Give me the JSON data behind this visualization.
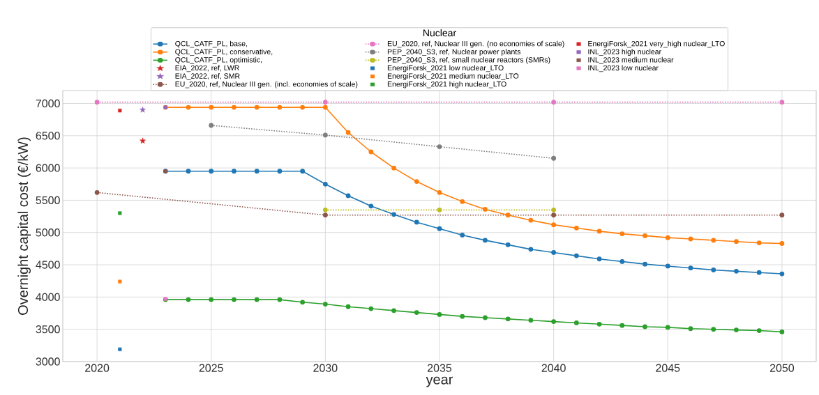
{
  "chart_data": {
    "type": "line",
    "xlabel": "year",
    "ylabel": "Overnight capital cost (€/kW)",
    "legend_title": "Nuclear",
    "legend": "top",
    "grid": true,
    "xlim": [
      2018.5,
      2051.5
    ],
    "ylim": [
      3000,
      7200
    ],
    "xticks": [
      2020,
      2025,
      2030,
      2035,
      2040,
      2045,
      2050
    ],
    "yticks": [
      3000,
      3500,
      4000,
      4500,
      5000,
      5500,
      6000,
      6500,
      7000
    ],
    "series": [
      {
        "name": "QCL_CATF_PL, base,",
        "type": "line",
        "marker": "circle",
        "line_style": "solid",
        "color": "#1f77b4",
        "x": [
          2023,
          2024,
          2025,
          2026,
          2027,
          2028,
          2029,
          2030,
          2031,
          2032,
          2033,
          2034,
          2035,
          2036,
          2037,
          2038,
          2039,
          2040,
          2041,
          2042,
          2043,
          2044,
          2045,
          2046,
          2047,
          2048,
          2049,
          2050
        ],
        "values": [
          5950,
          5950,
          5950,
          5950,
          5950,
          5950,
          5950,
          5750,
          5570,
          5410,
          5280,
          5160,
          5060,
          4960,
          4880,
          4810,
          4740,
          4690,
          4640,
          4590,
          4550,
          4510,
          4480,
          4450,
          4420,
          4400,
          4380,
          4360
        ]
      },
      {
        "name": "QCL_CATF_PL, conservative,",
        "type": "line",
        "marker": "circle",
        "line_style": "solid",
        "color": "#ff7f0e",
        "x": [
          2023,
          2024,
          2025,
          2026,
          2027,
          2028,
          2029,
          2030,
          2031,
          2032,
          2033,
          2034,
          2035,
          2036,
          2037,
          2038,
          2039,
          2040,
          2041,
          2042,
          2043,
          2044,
          2045,
          2046,
          2047,
          2048,
          2049,
          2050
        ],
        "values": [
          6940,
          6940,
          6940,
          6940,
          6940,
          6940,
          6940,
          6940,
          6550,
          6250,
          6000,
          5790,
          5620,
          5480,
          5360,
          5270,
          5190,
          5120,
          5070,
          5020,
          4980,
          4950,
          4920,
          4900,
          4880,
          4860,
          4840,
          4830
        ]
      },
      {
        "name": "QCL_CATF_PL, optimistic,",
        "type": "line",
        "marker": "circle",
        "line_style": "solid",
        "color": "#2ca02c",
        "x": [
          2023,
          2024,
          2025,
          2026,
          2027,
          2028,
          2029,
          2030,
          2031,
          2032,
          2033,
          2034,
          2035,
          2036,
          2037,
          2038,
          2039,
          2040,
          2041,
          2042,
          2043,
          2044,
          2045,
          2046,
          2047,
          2048,
          2049,
          2050
        ],
        "values": [
          3960,
          3960,
          3960,
          3960,
          3960,
          3960,
          3920,
          3890,
          3850,
          3820,
          3790,
          3760,
          3730,
          3700,
          3680,
          3660,
          3640,
          3620,
          3600,
          3580,
          3560,
          3540,
          3530,
          3510,
          3500,
          3490,
          3480,
          3460
        ]
      },
      {
        "name": "EIA_2022, ref, LWR",
        "type": "scatter",
        "marker": "star",
        "color": "#d62728",
        "x": [
          2022
        ],
        "values": [
          6420
        ]
      },
      {
        "name": "EIA_2022, ref, SMR",
        "type": "scatter",
        "marker": "star",
        "color": "#9467bd",
        "x": [
          2022
        ],
        "values": [
          6900
        ]
      },
      {
        "name": "EU_2020, ref, Nuclear III gen. (incl. economies of scale)",
        "type": "line",
        "marker": "circle",
        "line_style": "dotted",
        "color": "#8c564b",
        "x": [
          2020,
          2030,
          2040,
          2050
        ],
        "values": [
          5620,
          5270,
          5270,
          5270
        ]
      },
      {
        "name": "EU_2020, ref, Nuclear III gen. (no economies of scale)",
        "type": "line",
        "marker": "circle",
        "line_style": "dotted",
        "color": "#e377c2",
        "x": [
          2020,
          2030,
          2040,
          2050
        ],
        "values": [
          7020,
          7020,
          7020,
          7020
        ]
      },
      {
        "name": "PEP_2040_S3, ref, Nuclear power plants",
        "type": "line",
        "marker": "circle",
        "line_style": "dotted",
        "color": "#7f7f7f",
        "x": [
          2025,
          2030,
          2035,
          2040
        ],
        "values": [
          6660,
          6510,
          6330,
          6150
        ]
      },
      {
        "name": "PEP_2040_S3, ref, small nuclear reactors (SMRs)",
        "type": "line",
        "marker": "circle",
        "line_style": "dotted",
        "color": "#bcbd22",
        "x": [
          2030,
          2035,
          2040
        ],
        "values": [
          5350,
          5350,
          5350
        ]
      },
      {
        "name": "EnergiForsk_2021 low nuclear_LTO",
        "type": "scatter",
        "marker": "square",
        "color": "#1f77b4",
        "x": [
          2021
        ],
        "values": [
          3190
        ]
      },
      {
        "name": "EnergiForsk_2021 medium nuclear_LTO",
        "type": "scatter",
        "marker": "square",
        "color": "#ff7f0e",
        "x": [
          2021
        ],
        "values": [
          4240
        ]
      },
      {
        "name": "EnergiForsk_2021 high nuclear_LTO",
        "type": "scatter",
        "marker": "square",
        "color": "#2ca02c",
        "x": [
          2021
        ],
        "values": [
          5300
        ]
      },
      {
        "name": "EnergiForsk_2021 very_high nuclear_LTO",
        "type": "scatter",
        "marker": "square",
        "color": "#d62728",
        "x": [
          2021
        ],
        "values": [
          6890
        ]
      },
      {
        "name": "INL_2023 high nuclear",
        "type": "scatter",
        "marker": "square",
        "color": "#9467bd",
        "x": [
          2023
        ],
        "values": [
          6940
        ]
      },
      {
        "name": "INL_2023 medium nuclear",
        "type": "scatter",
        "marker": "square",
        "color": "#8c564b",
        "x": [
          2023
        ],
        "values": [
          5950
        ]
      },
      {
        "name": "INL_2023 low nuclear",
        "type": "scatter",
        "marker": "square",
        "color": "#e377c2",
        "x": [
          2023
        ],
        "values": [
          3970
        ]
      }
    ]
  }
}
